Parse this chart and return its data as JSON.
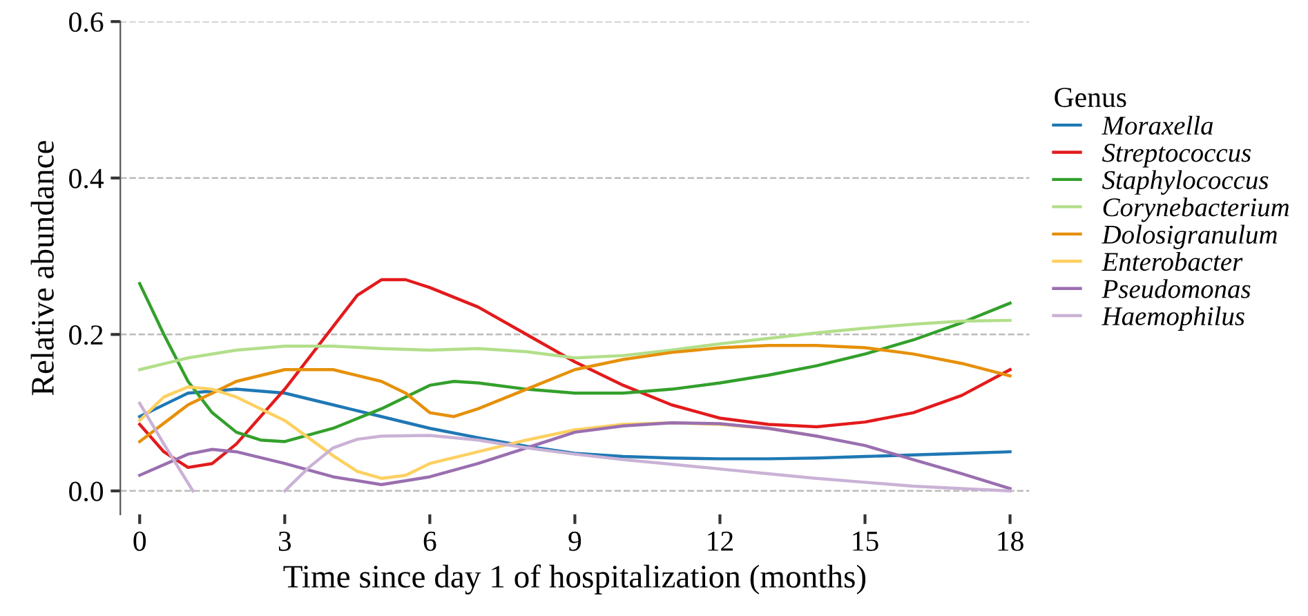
{
  "chart_data": {
    "type": "line",
    "xlabel": "Time since day 1 of hospitalization (months)",
    "ylabel": "Relative abundance",
    "legend_title": "Genus",
    "legend": "right",
    "grid": "y",
    "marker": "none",
    "line_style": "solid",
    "xlim": [
      -0.4,
      18.4
    ],
    "xticks": [
      0,
      3,
      6,
      9,
      12,
      15,
      18
    ],
    "ylim": [
      -0.03,
      0.6
    ],
    "yticks": [
      {
        "value": 0,
        "label": "0.0"
      },
      0.2,
      0.4,
      0.6
    ],
    "series": [
      {
        "name": "Moraxella",
        "color": "#1f78b4",
        "x": [
          0,
          1,
          2,
          3,
          4,
          5,
          6,
          7,
          8,
          9,
          10,
          11,
          12,
          13,
          14,
          15,
          16,
          17,
          18
        ],
        "values": [
          0.095,
          0.125,
          0.13,
          0.125,
          0.11,
          0.095,
          0.08,
          0.068,
          0.057,
          0.048,
          0.044,
          0.042,
          0.041,
          0.041,
          0.042,
          0.044,
          0.046,
          0.048,
          0.05
        ]
      },
      {
        "name": "Streptococcus",
        "color": "#e31a1c",
        "x": [
          0,
          0.5,
          1,
          1.5,
          2,
          3,
          4,
          4.5,
          5,
          5.5,
          6,
          7,
          8,
          9,
          10,
          11,
          12,
          13,
          14,
          15,
          16,
          17,
          18
        ],
        "values": [
          0.085,
          0.05,
          0.03,
          0.035,
          0.06,
          0.13,
          0.21,
          0.25,
          0.27,
          0.27,
          0.26,
          0.235,
          0.2,
          0.165,
          0.135,
          0.11,
          0.093,
          0.085,
          0.082,
          0.088,
          0.1,
          0.122,
          0.155
        ]
      },
      {
        "name": "Staphylococcus",
        "color": "#33a02c",
        "x": [
          0,
          0.5,
          1,
          1.5,
          2,
          2.5,
          3,
          4,
          5,
          6,
          6.5,
          7,
          8,
          9,
          10,
          11,
          12,
          13,
          14,
          15,
          16,
          17,
          18
        ],
        "values": [
          0.265,
          0.2,
          0.14,
          0.1,
          0.075,
          0.065,
          0.063,
          0.08,
          0.105,
          0.135,
          0.14,
          0.138,
          0.13,
          0.125,
          0.125,
          0.13,
          0.138,
          0.148,
          0.16,
          0.175,
          0.193,
          0.215,
          0.24
        ]
      },
      {
        "name": "Corynebacterium",
        "color": "#b2df8a",
        "x": [
          0,
          1,
          2,
          3,
          4,
          5,
          6,
          7,
          8,
          9,
          10,
          11,
          12,
          13,
          14,
          15,
          16,
          17,
          18
        ],
        "values": [
          0.155,
          0.17,
          0.18,
          0.185,
          0.185,
          0.182,
          0.18,
          0.182,
          0.178,
          0.17,
          0.173,
          0.18,
          0.188,
          0.195,
          0.202,
          0.208,
          0.213,
          0.217,
          0.218
        ]
      },
      {
        "name": "Dolosigranulum",
        "color": "#e6900a",
        "x": [
          0,
          1,
          2,
          3,
          4,
          5,
          5.5,
          6,
          6.5,
          7,
          8,
          9,
          10,
          11,
          12,
          13,
          14,
          15,
          16,
          17,
          18
        ],
        "values": [
          0.063,
          0.11,
          0.14,
          0.155,
          0.155,
          0.14,
          0.125,
          0.1,
          0.095,
          0.105,
          0.13,
          0.155,
          0.168,
          0.177,
          0.183,
          0.186,
          0.186,
          0.183,
          0.175,
          0.163,
          0.147
        ]
      },
      {
        "name": "Enterobacter",
        "color": "#fdd060",
        "x": [
          0,
          0.5,
          1,
          1.5,
          2,
          3,
          4,
          4.5,
          5,
          5.5,
          6,
          7,
          8,
          9,
          10,
          11,
          12,
          13,
          14
        ],
        "values": [
          0.09,
          0.12,
          0.133,
          0.13,
          0.12,
          0.09,
          0.045,
          0.025,
          0.016,
          0.02,
          0.035,
          0.05,
          0.065,
          0.078,
          0.085,
          0.087,
          0.085,
          0.08,
          0.07
        ]
      },
      {
        "name": "Pseudomonas",
        "color": "#9a6fb0",
        "x": [
          0,
          1,
          1.5,
          2,
          3,
          4,
          5,
          6,
          7,
          8,
          9,
          10,
          11,
          12,
          13,
          14,
          15,
          16,
          17,
          18
        ],
        "values": [
          0.02,
          0.047,
          0.053,
          0.05,
          0.035,
          0.018,
          0.008,
          0.018,
          0.035,
          0.055,
          0.075,
          0.083,
          0.087,
          0.086,
          0.08,
          0.07,
          0.058,
          0.04,
          0.022,
          0.003
        ]
      },
      {
        "name": "Haemophilus",
        "color": "#cab2d6",
        "x": [
          0,
          0.5,
          1,
          1.1,
          2,
          3,
          3.5,
          4,
          4.5,
          5,
          6,
          7,
          8,
          9,
          10,
          11,
          12,
          13,
          14,
          15,
          16,
          17,
          18
        ],
        "values": [
          0.112,
          0.06,
          0.01,
          0.0,
          null,
          0.0,
          0.03,
          0.055,
          0.066,
          0.07,
          0.071,
          0.065,
          0.055,
          0.047,
          0.04,
          0.034,
          0.028,
          0.022,
          0.016,
          0.011,
          0.006,
          0.003,
          0.0
        ]
      }
    ]
  }
}
